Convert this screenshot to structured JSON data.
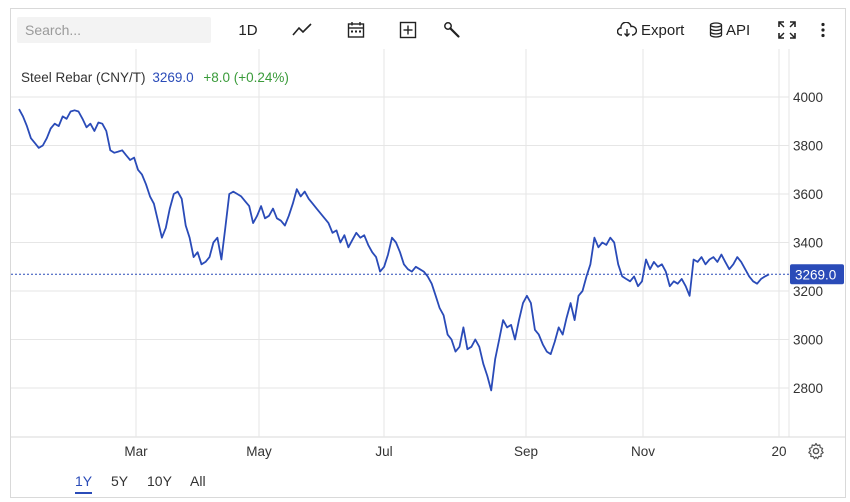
{
  "toolbar": {
    "search_placeholder": "Search...",
    "interval_label": "1D",
    "export_label": "Export",
    "api_label": "API",
    "icons": [
      "line-chart-icon",
      "calendar-icon",
      "plus-box-icon",
      "wrench-icon",
      "cloud-download-icon",
      "database-icon",
      "fullscreen-icon",
      "more-vertical-icon"
    ]
  },
  "legend": {
    "name": "Steel Rebar (CNY/T)",
    "price": "3269.0",
    "change": "+8.0 (+0.24%)"
  },
  "last_price_label": "3269.0",
  "ranges": [
    "1Y",
    "5Y",
    "10Y",
    "All"
  ],
  "active_range": "1Y",
  "colors": {
    "line": "#2a4bb8",
    "change_positive": "#3a9b3a",
    "grid": "#e6e6e6"
  },
  "chart_data": {
    "type": "line",
    "title": "Steel Rebar (CNY/T)",
    "xlabel": "",
    "ylabel": "",
    "x_tick_labels": [
      "Mar",
      "May",
      "Jul",
      "Sep",
      "Nov",
      "20"
    ],
    "y_ticks": [
      2800,
      3000,
      3200,
      3400,
      3600,
      3800,
      4000
    ],
    "ylim": [
      2600,
      4180
    ],
    "last_value": 3269.0,
    "grid": true,
    "series": [
      {
        "name": "Steel Rebar (CNY/T)",
        "values": [
          3950,
          3920,
          3880,
          3830,
          3810,
          3790,
          3800,
          3830,
          3870,
          3890,
          3880,
          3920,
          3910,
          3940,
          3945,
          3940,
          3910,
          3875,
          3890,
          3860,
          3895,
          3890,
          3860,
          3780,
          3770,
          3775,
          3780,
          3760,
          3740,
          3750,
          3700,
          3680,
          3640,
          3590,
          3560,
          3490,
          3420,
          3460,
          3540,
          3600,
          3610,
          3580,
          3470,
          3420,
          3340,
          3360,
          3310,
          3320,
          3340,
          3400,
          3420,
          3330,
          3460,
          3600,
          3610,
          3600,
          3590,
          3570,
          3550,
          3480,
          3510,
          3550,
          3500,
          3510,
          3540,
          3500,
          3490,
          3470,
          3510,
          3560,
          3620,
          3590,
          3610,
          3580,
          3560,
          3540,
          3520,
          3500,
          3480,
          3440,
          3450,
          3400,
          3430,
          3380,
          3410,
          3440,
          3420,
          3430,
          3390,
          3360,
          3340,
          3280,
          3300,
          3350,
          3420,
          3400,
          3360,
          3310,
          3290,
          3280,
          3300,
          3290,
          3280,
          3260,
          3230,
          3180,
          3130,
          3100,
          3020,
          3000,
          2950,
          2970,
          3050,
          2960,
          2970,
          3000,
          2970,
          2900,
          2850,
          2790,
          2920,
          3000,
          3080,
          3050,
          3060,
          3000,
          3080,
          3150,
          3180,
          3150,
          3040,
          3020,
          2980,
          2950,
          2940,
          2990,
          3050,
          3020,
          3090,
          3150,
          3080,
          3180,
          3200,
          3260,
          3310,
          3420,
          3380,
          3400,
          3390,
          3420,
          3400,
          3310,
          3260,
          3250,
          3240,
          3260,
          3220,
          3240,
          3330,
          3290,
          3320,
          3300,
          3310,
          3280,
          3220,
          3240,
          3230,
          3250,
          3220,
          3180,
          3330,
          3320,
          3340,
          3310,
          3330,
          3340,
          3320,
          3350,
          3320,
          3290,
          3310,
          3340,
          3320,
          3290,
          3260,
          3240,
          3230,
          3250,
          3260,
          3269
        ]
      }
    ]
  }
}
